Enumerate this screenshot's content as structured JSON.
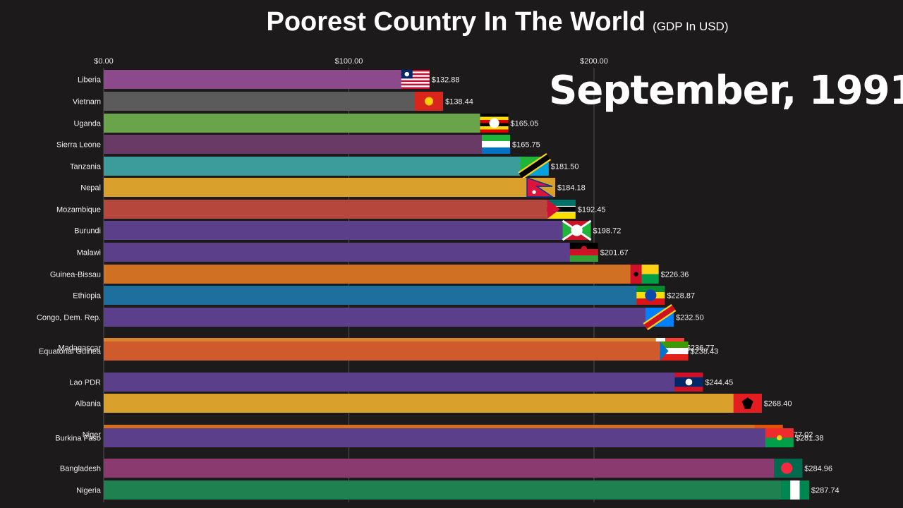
{
  "title": "Poorest Country In The World",
  "subtitle": "(GDP In USD)",
  "period": "September, 1991",
  "chart_data": {
    "type": "bar",
    "orientation": "horizontal",
    "title": "Poorest Country In The World",
    "subtitle": "(GDP In USD)",
    "xlim": [
      0,
      288
    ],
    "x_ticks": [
      0,
      100,
      200
    ],
    "x_tick_labels": [
      "$0.00",
      "$100.00",
      "$200.00"
    ],
    "grid": true,
    "bars": [
      {
        "name": "Liberia",
        "value": 132.88,
        "label": "$132.88",
        "color": "#8c4a8d",
        "flag": "liberia-flag"
      },
      {
        "name": "Vietnam",
        "value": 138.44,
        "label": "$138.44",
        "color": "#5b5b5b",
        "flag": "vietnam-flag"
      },
      {
        "name": "Uganda",
        "value": 165.05,
        "label": "$165.05",
        "color": "#6aa44a",
        "flag": "uganda-flag"
      },
      {
        "name": "Sierra Leone",
        "value": 165.75,
        "label": "$165.75",
        "color": "#6a3a66",
        "flag": "sierra-leone-flag"
      },
      {
        "name": "Tanzania",
        "value": 181.5,
        "label": "$181.50",
        "color": "#3c9b9b",
        "flag": "tanzania-flag"
      },
      {
        "name": "Nepal",
        "value": 184.18,
        "label": "$184.18",
        "color": "#d9a12b",
        "flag": "nepal-flag"
      },
      {
        "name": "Mozambique",
        "value": 192.45,
        "label": "$192.45",
        "color": "#b5473c",
        "flag": "mozambique-flag"
      },
      {
        "name": "Burundi",
        "value": 198.72,
        "label": "$198.72",
        "color": "#5c3f8a",
        "flag": "burundi-flag"
      },
      {
        "name": "Malawi",
        "value": 201.67,
        "label": "$201.67",
        "color": "#5c3f8a",
        "flag": "malawi-flag"
      },
      {
        "name": "Guinea-Bissau",
        "value": 226.36,
        "label": "$226.36",
        "color": "#cf7023",
        "flag": "guinea-bissau-flag"
      },
      {
        "name": "Ethiopia",
        "value": 228.87,
        "label": "$228.87",
        "color": "#1f6f9e",
        "flag": "ethiopia-flag"
      },
      {
        "name": "Congo, Dem. Rep.",
        "value": 232.5,
        "label": "$232.50",
        "color": "#5c3f8a",
        "flag": "congo-flag"
      },
      {
        "name": "Madagascar",
        "value": 236.77,
        "label": "$236.77",
        "color": "#d9822b",
        "flag": "madagascar-flag"
      },
      {
        "name": "Equatorial Guinea",
        "value": 238.43,
        "label": "$238.43",
        "color": "#cf5a2b",
        "flag": "equatorial-guinea-flag"
      },
      {
        "name": "Lao PDR",
        "value": 244.45,
        "label": "$244.45",
        "color": "#5c3f8a",
        "flag": "lao-flag"
      },
      {
        "name": "Albania",
        "value": 268.4,
        "label": "$268.40",
        "color": "#d9a12b",
        "flag": "albania-flag"
      },
      {
        "name": "Niger",
        "value": 277.02,
        "label": "$277.02",
        "color": "#cf7023",
        "flag": "niger-flag"
      },
      {
        "name": "Burkina Faso",
        "value": 281.38,
        "label": "$281.38",
        "color": "#5c3f8a",
        "flag": "burkina-faso-flag"
      },
      {
        "name": "Bangladesh",
        "value": 284.96,
        "label": "$284.96",
        "color": "#8a3a6e",
        "flag": "bangladesh-flag"
      },
      {
        "name": "Nigeria",
        "value": 287.74,
        "label": "$287.74",
        "color": "#1f8050",
        "flag": "nigeria-flag"
      }
    ]
  }
}
